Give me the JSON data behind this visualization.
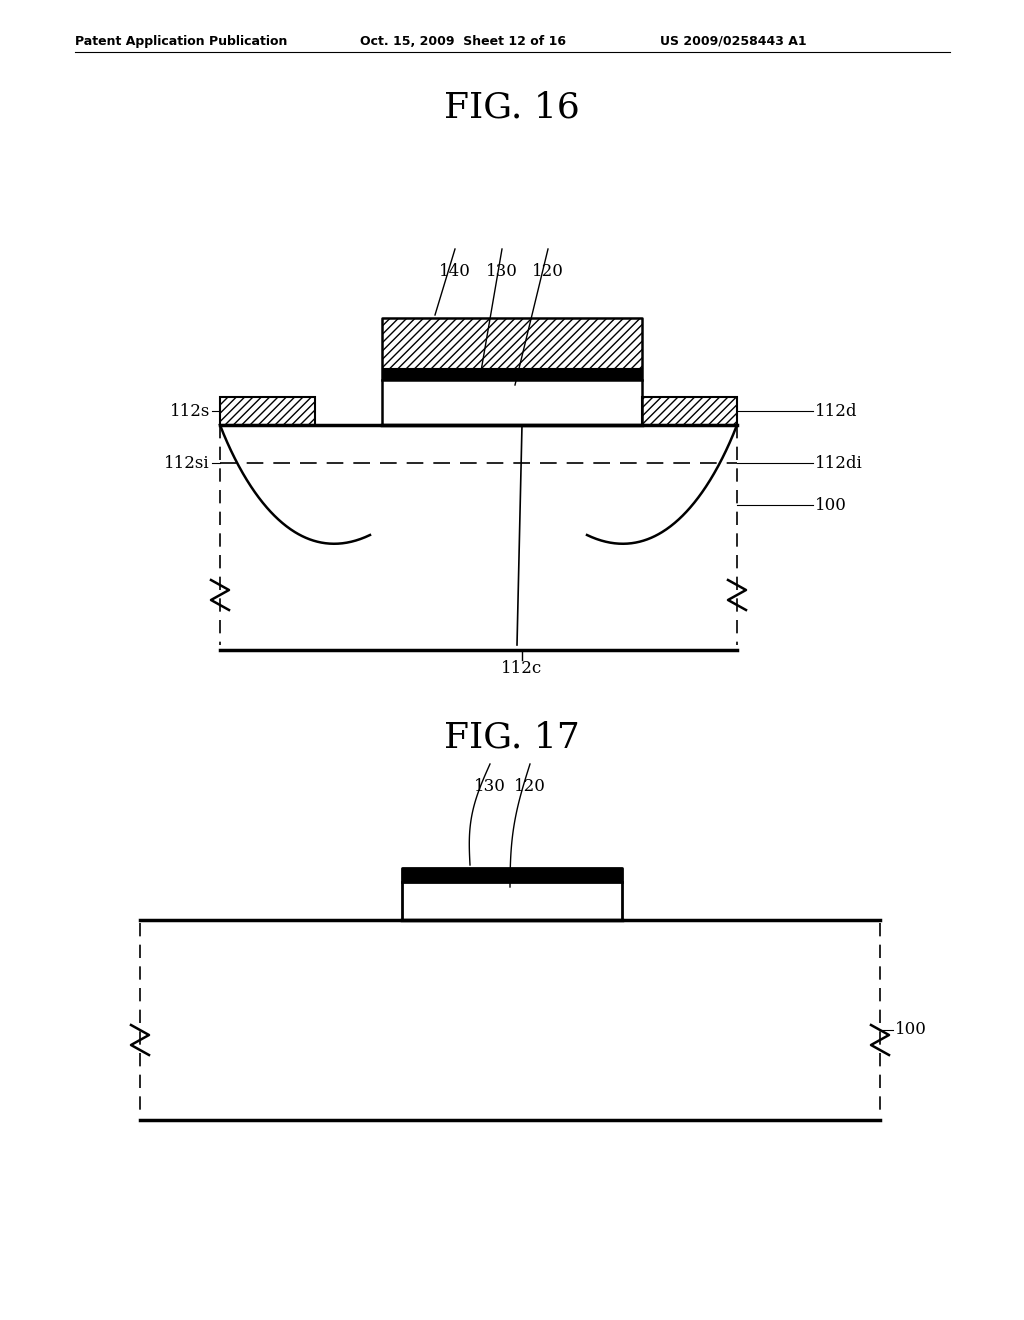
{
  "header_left": "Patent Application Publication",
  "header_mid": "Oct. 15, 2009  Sheet 12 of 16",
  "header_right": "US 2009/0258443 A1",
  "fig16_title": "FIG. 16",
  "fig17_title": "FIG. 17",
  "bg_color": "#ffffff",
  "line_color": "#000000"
}
